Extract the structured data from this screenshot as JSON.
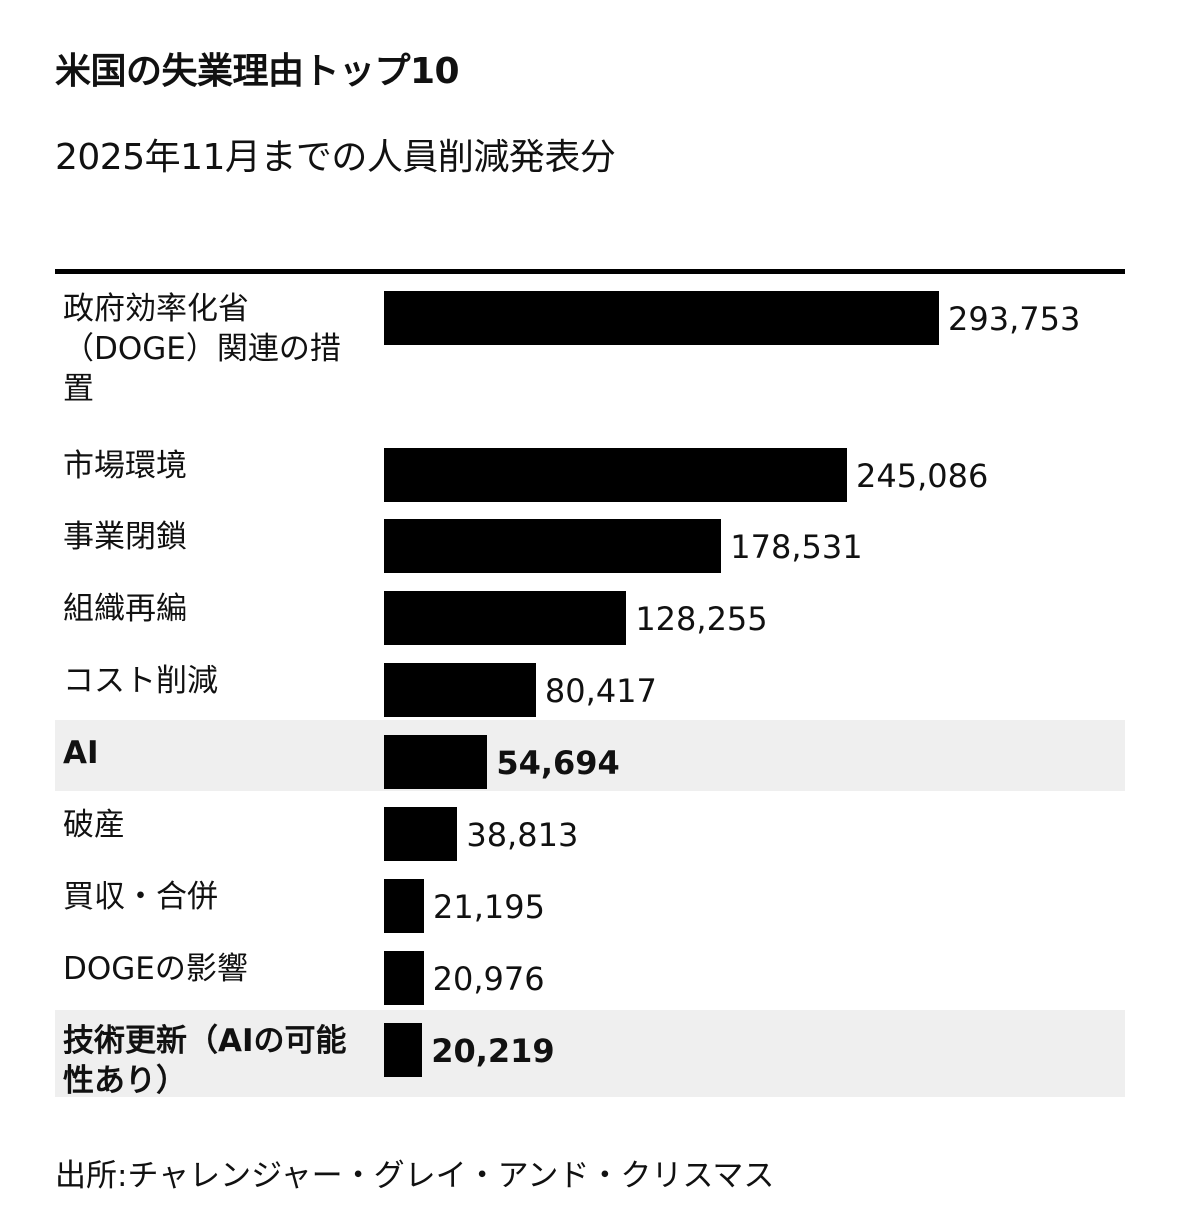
{
  "chart_data": {
    "type": "bar",
    "orientation": "horizontal",
    "title": "米国の失業理由トップ10",
    "subtitle": "2025年11月までの人員削減発表分",
    "categories": [
      "政府効率化省（DOGE）関連の措置",
      "市場環境",
      "事業閉鎖",
      "組織再編",
      "コスト削減",
      "AI",
      "破産",
      "買収・合併",
      "DOGEの影響",
      "技術更新（AIの可能性あり）"
    ],
    "values": [
      293753,
      245086,
      178531,
      128255,
      80417,
      54694,
      38813,
      21195,
      20976,
      20219
    ],
    "value_labels": [
      "293,753",
      "245,086",
      "178,531",
      "128,255",
      "80,417",
      "54,694",
      "38,813",
      "21,195",
      "20,976",
      "20,219"
    ],
    "highlighted": [
      false,
      false,
      false,
      false,
      false,
      true,
      false,
      false,
      false,
      true
    ],
    "bar_color": "#000000",
    "highlight_color": "#efefef",
    "xlim": [
      0,
      293753
    ],
    "grid": false,
    "legend": "none",
    "source": "出所:チャレンジャー・グレイ・アンド・クリスマス"
  }
}
